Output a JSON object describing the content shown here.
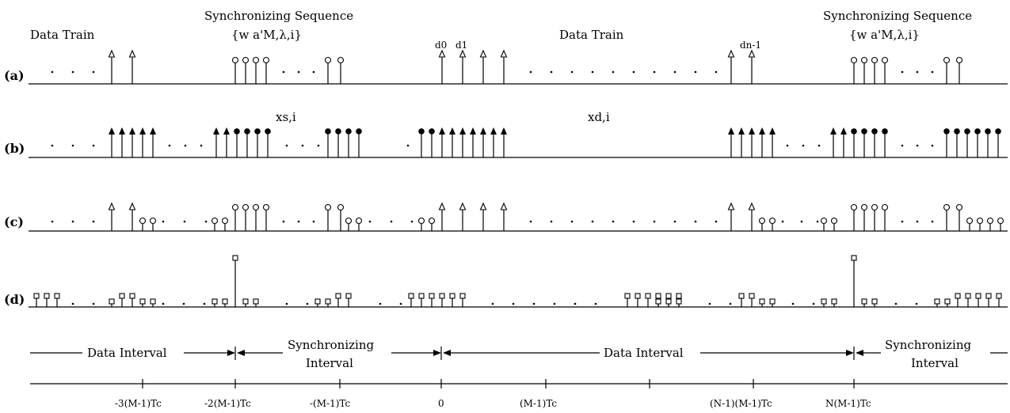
{
  "header": {
    "data_train_left": "Data Train",
    "sync_left_title": "Synchronizing Sequence",
    "sync_left_formula": "{w a'M,λ,i}",
    "d0": "d0",
    "d1": "d1",
    "data_train_center": "Data Train",
    "dn1": "dn-1",
    "sync_right_title": "Synchronizing Sequence",
    "sync_right_formula": "{w a'M,λ,i}"
  },
  "rows": {
    "a": "(a)",
    "b": "(b)",
    "c": "(c)",
    "d": "(d)"
  },
  "signal_labels": {
    "xs": "xs,i",
    "xd": "xd,i"
  },
  "intervals": {
    "data_left": "Data Interval",
    "sync_left_1": "Synchronizing",
    "sync_left_2": "Interval",
    "data_center": "Data Interval",
    "sync_right_1": "Synchronizing",
    "sync_right_2": "Interval"
  },
  "axis_ticks": [
    "-3(M-1)Tc",
    "-2(M-1)Tc",
    "-(M-1)Tc",
    "0",
    "(M-1)Tc",
    "(N-1)(M-1)Tc",
    "N(M-1)Tc"
  ],
  "ellipsis": "· · ·"
}
